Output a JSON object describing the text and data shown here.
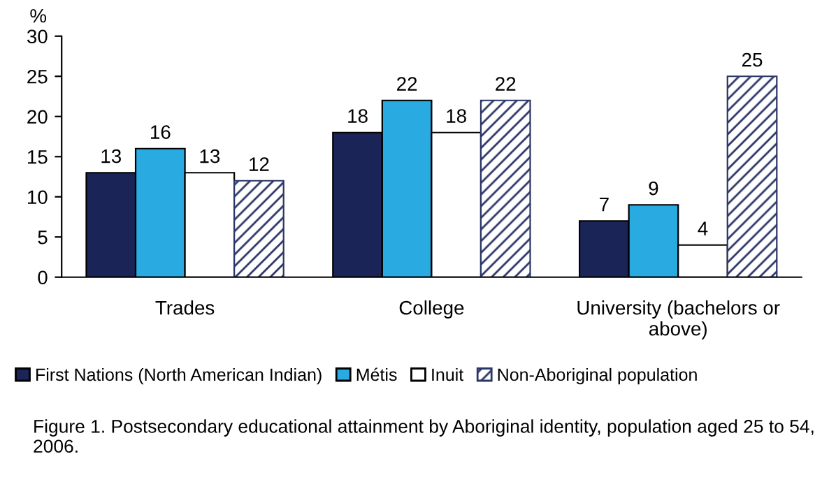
{
  "chart_data": {
    "type": "bar",
    "ylabel": "%",
    "categories": [
      "Trades",
      "College",
      "University (bachelors or\nabove)"
    ],
    "series": [
      {
        "name": "First Nations (North American Indian)",
        "color": "#1b2456",
        "values": [
          13,
          18,
          7
        ]
      },
      {
        "name": "Métis",
        "color": "#29abe2",
        "values": [
          16,
          22,
          9
        ]
      },
      {
        "name": "Inuit",
        "color": "#ffffff",
        "values": [
          13,
          18,
          4
        ]
      },
      {
        "name": "Non-Aboriginal population",
        "color": "#2b3566",
        "values": [
          12,
          22,
          25
        ]
      }
    ],
    "ylim": [
      0,
      30
    ],
    "yticks": [
      0,
      5,
      10,
      15,
      20,
      25,
      30
    ],
    "data_labels": true,
    "legend": "bottom",
    "grid": false,
    "annotations": [
      "Figure 1. Postsecondary educational attainment by Aboriginal identity, population aged 25 to 54, 2006."
    ]
  }
}
